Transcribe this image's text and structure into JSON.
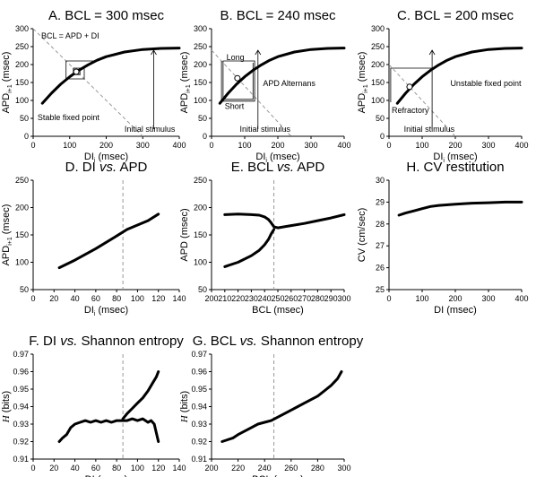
{
  "figure": {
    "colors": {
      "line": "#000000",
      "axis": "#000000",
      "dashed": "#999999",
      "marker_fill": "#ffffff"
    }
  },
  "chart_data": [
    {
      "id": "A",
      "type": "line",
      "title": "A. BCL = 300 msec",
      "xlabel": "DI",
      "xlabel_sub": "i",
      "xlabel_unit": " (msec)",
      "ylabel": "APD",
      "ylabel_sub": "i+1",
      "ylabel_unit": " (msec)",
      "xlim": [
        0,
        400
      ],
      "ylim": [
        0,
        300
      ],
      "xticks": [
        0,
        100,
        200,
        300,
        400
      ],
      "yticks": [
        0,
        50,
        100,
        150,
        200,
        250,
        300
      ],
      "x": [
        25,
        50,
        75,
        100,
        125,
        150,
        175,
        200,
        250,
        300,
        350,
        400
      ],
      "series": [
        {
          "values": [
            92,
            120,
            145,
            166,
            184,
            199,
            212,
            222,
            235,
            242,
            245,
            246
          ]
        }
      ],
      "bcl_line": {
        "from": [
          0,
          300
        ],
        "to": [
          300,
          0
        ]
      },
      "fixed_point": [
        118,
        180
      ],
      "cobweb": [
        [
          170,
          210
        ],
        [
          90,
          210
        ],
        [
          90,
          160
        ],
        [
          140,
          160
        ],
        [
          140,
          190
        ],
        [
          110,
          190
        ],
        [
          110,
          172
        ],
        [
          128,
          172
        ],
        [
          128,
          184
        ],
        [
          116,
          184
        ]
      ],
      "annotations": [
        {
          "text": "BCL = APD + DI",
          "at": [
            22,
            272
          ]
        },
        {
          "text": "Stable fixed point",
          "at": [
            12,
            45
          ]
        },
        {
          "text": "Initial stimulus",
          "at": [
            250,
            12
          ]
        }
      ],
      "initial_stimulus_x": 330
    },
    {
      "id": "B",
      "type": "line",
      "title": "B. BCL = 240 msec",
      "xlabel": "DI",
      "xlabel_sub": "i",
      "xlabel_unit": " (msec)",
      "ylabel": "APD",
      "ylabel_sub": "i+1",
      "ylabel_unit": " (msec)",
      "xlim": [
        0,
        400
      ],
      "ylim": [
        0,
        300
      ],
      "xticks": [
        0,
        100,
        200,
        300,
        400
      ],
      "yticks": [
        0,
        50,
        100,
        150,
        200,
        250,
        300
      ],
      "x": [
        25,
        50,
        75,
        100,
        125,
        150,
        175,
        200,
        250,
        300,
        350,
        400
      ],
      "series": [
        {
          "values": [
            92,
            120,
            145,
            166,
            184,
            199,
            212,
            222,
            235,
            242,
            245,
            246
          ]
        }
      ],
      "bcl_line": {
        "from": [
          0,
          240
        ],
        "to": [
          240,
          0
        ]
      },
      "fixed_point": [
        78,
        162
      ],
      "cobweb": [
        [
          30,
          210
        ],
        [
          30,
          98
        ],
        [
          130,
          98
        ],
        [
          130,
          210
        ],
        [
          35,
          210
        ],
        [
          35,
          103
        ],
        [
          125,
          103
        ],
        [
          125,
          205
        ]
      ],
      "annotations": [
        {
          "text": "Long",
          "at": [
            45,
            213
          ]
        },
        {
          "text": "Short",
          "at": [
            40,
            76
          ]
        },
        {
          "text": "APD Alternans",
          "at": [
            155,
            140
          ]
        },
        {
          "text": "Initial stimulus",
          "at": [
            85,
            12
          ]
        }
      ],
      "initial_stimulus_x": 140
    },
    {
      "id": "C",
      "type": "line",
      "title": "C. BCL = 200 msec",
      "xlabel": "DI",
      "xlabel_sub": "i",
      "xlabel_unit": " (msec)",
      "ylabel": "APD",
      "ylabel_sub": "i+1",
      "ylabel_unit": " (msec)",
      "xlim": [
        0,
        400
      ],
      "ylim": [
        0,
        300
      ],
      "xticks": [
        0,
        100,
        200,
        300,
        400
      ],
      "yticks": [
        0,
        50,
        100,
        150,
        200,
        250,
        300
      ],
      "x": [
        25,
        50,
        75,
        100,
        125,
        150,
        175,
        200,
        250,
        300,
        350,
        400
      ],
      "series": [
        {
          "values": [
            92,
            120,
            145,
            166,
            184,
            199,
            212,
            222,
            235,
            242,
            245,
            246
          ]
        }
      ],
      "bcl_line": {
        "from": [
          0,
          200
        ],
        "to": [
          200,
          0
        ]
      },
      "fixed_point": [
        62,
        138
      ],
      "cobweb": [
        [
          130,
          190
        ],
        [
          5,
          190
        ],
        [
          5,
          95
        ]
      ],
      "annotations": [
        {
          "text": "Unstable fixed point",
          "at": [
            185,
            140
          ]
        },
        {
          "text": "Refractory",
          "at": [
            8,
            65
          ]
        },
        {
          "text": "Initial stimulus",
          "at": [
            45,
            12
          ]
        }
      ],
      "initial_stimulus_x": 130
    },
    {
      "id": "D",
      "type": "line",
      "title": "D. DI ",
      "title_italic": "vs.",
      "title_tail": " APD",
      "xlabel": "DI",
      "xlabel_sub": "i",
      "xlabel_unit": " (msec)",
      "ylabel": "APD",
      "ylabel_sub": "i+1",
      "ylabel_unit": " (msec)",
      "xlim": [
        0,
        140
      ],
      "ylim": [
        50,
        250
      ],
      "xticks": [
        0,
        20,
        40,
        60,
        80,
        100,
        120,
        140
      ],
      "yticks": [
        50,
        100,
        150,
        200,
        250
      ],
      "vline": 86,
      "x": [
        25,
        40,
        60,
        80,
        90,
        100,
        110,
        120
      ],
      "series": [
        {
          "values": [
            90,
            104,
            125,
            148,
            160,
            168,
            176,
            188
          ]
        }
      ]
    },
    {
      "id": "E",
      "type": "line",
      "title": "E. BCL ",
      "title_italic": "vs.",
      "title_tail": " APD",
      "xlabel": "BCL (msec)",
      "ylabel": "APD (msec)",
      "xlim": [
        200,
        300
      ],
      "ylim": [
        50,
        250
      ],
      "xticks": [
        200,
        210,
        220,
        230,
        240,
        250,
        260,
        270,
        280,
        290,
        300
      ],
      "yticks": [
        50,
        100,
        150,
        200,
        250
      ],
      "vline": 247,
      "series": [
        {
          "x": [
            210,
            220,
            230,
            236,
            240,
            243,
            245,
            247,
            250,
            260,
            270,
            280,
            290,
            300
          ],
          "values": [
            187,
            188,
            187,
            186,
            183,
            178,
            172,
            165,
            163,
            167,
            171,
            176,
            181,
            187
          ]
        },
        {
          "x": [
            210,
            220,
            230,
            236,
            240,
            243,
            245,
            247
          ],
          "values": [
            92,
            100,
            112,
            122,
            132,
            142,
            152,
            160
          ]
        }
      ]
    },
    {
      "id": "H",
      "type": "line",
      "title": "H. CV restitution",
      "xlabel": "DI (msec)",
      "ylabel": "CV (cm/sec)",
      "xlim": [
        0,
        400
      ],
      "ylim": [
        25,
        30
      ],
      "xticks": [
        0,
        100,
        200,
        300,
        400
      ],
      "yticks": [
        25,
        26,
        27,
        28,
        29,
        30
      ],
      "x": [
        30,
        50,
        75,
        100,
        125,
        150,
        200,
        250,
        300,
        350,
        400
      ],
      "series": [
        {
          "values": [
            28.4,
            28.5,
            28.6,
            28.7,
            28.8,
            28.85,
            28.9,
            28.95,
            28.97,
            29.0,
            29.0
          ]
        }
      ]
    },
    {
      "id": "F",
      "type": "line",
      "title": "F. DI ",
      "title_italic": "vs.",
      "title_tail": " Shannon entropy",
      "xlabel": "DI (msec)",
      "ylabel": "H",
      "ylabel_unit": " (bits)",
      "xlim": [
        0,
        140
      ],
      "ylim": [
        0.91,
        0.97
      ],
      "xticks": [
        0,
        20,
        40,
        60,
        80,
        100,
        120,
        140
      ],
      "yticks": [
        0.91,
        0.92,
        0.93,
        0.94,
        0.95,
        0.96,
        0.97
      ],
      "vline": 86,
      "series": [
        {
          "x": [
            25,
            28,
            32,
            36,
            40,
            45,
            50,
            55,
            60,
            65,
            70,
            75,
            80,
            85,
            90,
            95,
            100,
            105,
            110,
            113,
            116,
            118,
            120
          ],
          "values": [
            0.92,
            0.922,
            0.924,
            0.928,
            0.93,
            0.931,
            0.932,
            0.931,
            0.932,
            0.931,
            0.932,
            0.931,
            0.932,
            0.932,
            0.932,
            0.933,
            0.932,
            0.933,
            0.931,
            0.932,
            0.93,
            0.925,
            0.92
          ]
        },
        {
          "x": [
            86,
            90,
            95,
            100,
            105,
            110,
            115,
            118,
            120
          ],
          "values": [
            0.933,
            0.936,
            0.939,
            0.942,
            0.945,
            0.949,
            0.954,
            0.957,
            0.96
          ]
        }
      ]
    },
    {
      "id": "G",
      "type": "line",
      "title": "G. BCL ",
      "title_italic": "vs.",
      "title_tail": " Shannon entropy",
      "xlabel": "BCL (msec)",
      "ylabel": "H",
      "ylabel_unit": " (bits)",
      "xlim": [
        200,
        300
      ],
      "ylim": [
        0.91,
        0.97
      ],
      "xticks": [
        200,
        220,
        240,
        260,
        280,
        300
      ],
      "yticks": [
        0.91,
        0.92,
        0.93,
        0.94,
        0.95,
        0.96,
        0.97
      ],
      "vline": 247,
      "x": [
        208,
        212,
        216,
        220,
        225,
        230,
        235,
        240,
        245,
        250,
        255,
        260,
        265,
        270,
        275,
        280,
        285,
        290,
        295,
        298
      ],
      "series": [
        {
          "values": [
            0.92,
            0.921,
            0.922,
            0.924,
            0.926,
            0.928,
            0.93,
            0.931,
            0.932,
            0.934,
            0.936,
            0.938,
            0.94,
            0.942,
            0.944,
            0.946,
            0.949,
            0.952,
            0.956,
            0.96
          ]
        }
      ]
    }
  ]
}
